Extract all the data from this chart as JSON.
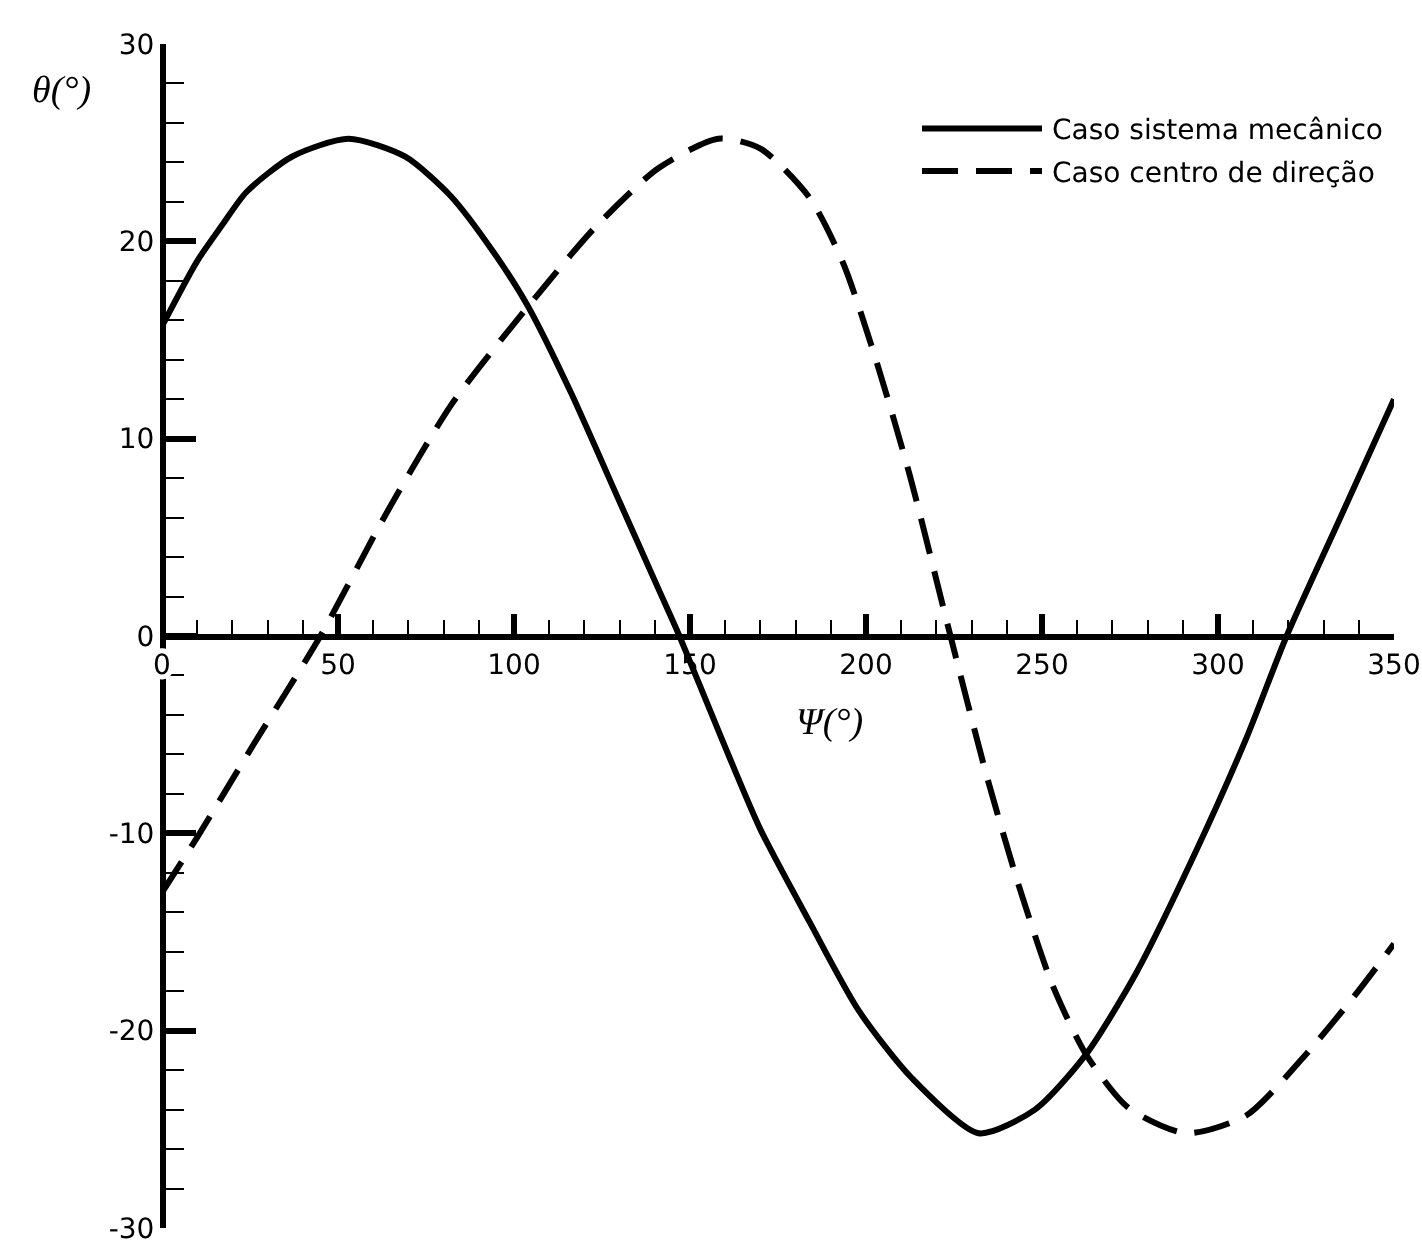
{
  "chart_data": {
    "type": "line",
    "xlabel": "Ψ(°)",
    "ylabel": "θ(°)",
    "series": [
      {
        "name": "Caso sistema mecânico",
        "color": "#000000",
        "line_style": "solid",
        "x": [
          0,
          10,
          17,
          24,
          37,
          53,
          69,
          82,
          94,
          104,
          116,
          130,
          141,
          147,
          159,
          170,
          184,
          198,
          213,
          232,
          248,
          262.5,
          277,
          293.5,
          308,
          319.5,
          334,
          350
        ],
        "values": [
          15.7,
          19,
          20.8,
          22.5,
          24.3,
          25.2,
          24.3,
          22.3,
          19.5,
          16.7,
          12.4,
          6.8,
          2.4,
          0,
          -5.2,
          -9.8,
          -14.5,
          -19,
          -22.4,
          -25.2,
          -24,
          -21.2,
          -17,
          -11,
          -5.2,
          0,
          5.7,
          12
        ]
      },
      {
        "name": "Caso centro de direção",
        "color": "#000000",
        "line_style": "dashed",
        "x": [
          0,
          10,
          26,
          45,
          64,
          82.5,
          104,
          123,
          141,
          158,
          170,
          184,
          193.5,
          203,
          212.5,
          224,
          234,
          243.5,
          253,
          262.5,
          274.5,
          291,
          308,
          324,
          338.5,
          350
        ],
        "values": [
          -13,
          -10.2,
          -5.5,
          0,
          6.3,
          11.8,
          16.7,
          20.7,
          23.7,
          25.2,
          24.7,
          22.2,
          18.9,
          13.9,
          8.1,
          0,
          -6.9,
          -12.7,
          -17.7,
          -21.2,
          -23.9,
          -25.2,
          -24.3,
          -21.4,
          -18.3,
          -15.6
        ]
      }
    ],
    "xlim": [
      0,
      350
    ],
    "ylim": [
      -30,
      30
    ],
    "xticks": [
      0,
      {
        "value": 10,
        "label": null
      },
      {
        "value": 20,
        "label": null
      },
      {
        "value": 30,
        "label": null
      },
      {
        "value": 40,
        "label": null
      },
      50,
      {
        "value": 60,
        "label": null
      },
      {
        "value": 70,
        "label": null
      },
      {
        "value": 80,
        "label": null
      },
      {
        "value": 90,
        "label": null
      },
      100,
      {
        "value": 110,
        "label": null
      },
      {
        "value": 120,
        "label": null
      },
      {
        "value": 130,
        "label": null
      },
      {
        "value": 140,
        "label": null
      },
      150,
      {
        "value": 160,
        "label": null
      },
      {
        "value": 170,
        "label": null
      },
      {
        "value": 180,
        "label": null
      },
      {
        "value": 190,
        "label": null
      },
      200,
      {
        "value": 210,
        "label": null
      },
      {
        "value": 220,
        "label": null
      },
      {
        "value": 230,
        "label": null
      },
      {
        "value": 240,
        "label": null
      },
      250,
      {
        "value": 260,
        "label": null
      },
      {
        "value": 270,
        "label": null
      },
      {
        "value": 280,
        "label": null
      },
      {
        "value": 290,
        "label": null
      },
      300,
      {
        "value": 310,
        "label": null
      },
      {
        "value": 320,
        "label": null
      },
      {
        "value": 330,
        "label": null
      },
      {
        "value": 340,
        "label": null
      },
      350
    ],
    "yticks": [
      -30,
      {
        "value": -28,
        "label": null
      },
      {
        "value": -26,
        "label": null
      },
      {
        "value": -24,
        "label": null
      },
      {
        "value": -22,
        "label": null
      },
      -20,
      {
        "value": -18,
        "label": null
      },
      {
        "value": -16,
        "label": null
      },
      {
        "value": -14,
        "label": null
      },
      {
        "value": -12,
        "label": null
      },
      -10,
      {
        "value": -8,
        "label": null
      },
      {
        "value": -6,
        "label": null
      },
      {
        "value": -4,
        "label": null
      },
      {
        "value": -2,
        "label": null
      },
      0,
      {
        "value": 2,
        "label": null
      },
      {
        "value": 4,
        "label": null
      },
      {
        "value": 6,
        "label": null
      },
      {
        "value": 8,
        "label": null
      },
      10,
      {
        "value": 12,
        "label": null
      },
      {
        "value": 14,
        "label": null
      },
      {
        "value": 16,
        "label": null
      },
      {
        "value": 18,
        "label": null
      },
      20,
      {
        "value": 22,
        "label": null
      },
      {
        "value": 24,
        "label": null
      },
      {
        "value": 26,
        "label": null
      },
      {
        "value": 28,
        "label": null
      },
      30
    ],
    "grid": false,
    "legend": "top right",
    "marker": "none"
  }
}
